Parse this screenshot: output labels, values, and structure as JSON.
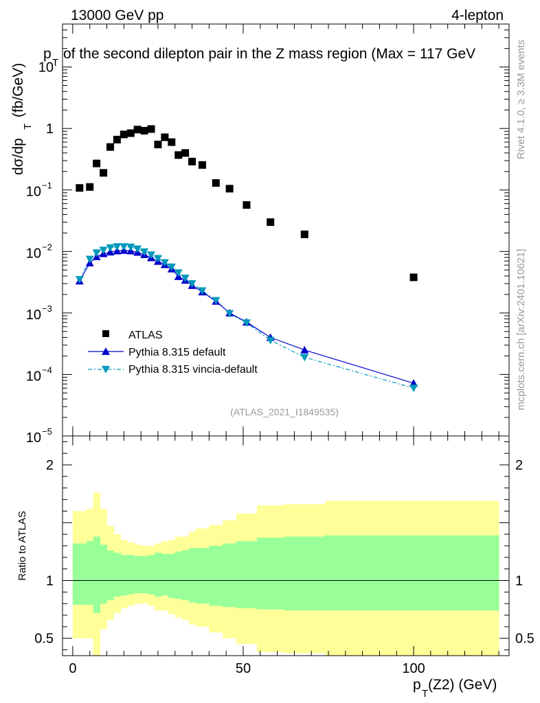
{
  "header": {
    "left": "13000 GeV pp",
    "right": "4-lepton"
  },
  "title": {
    "main": "of the second dilepton pair in the Z mass region (Max = 117 GeV",
    "prefix": "p",
    "prefix_sub": "T"
  },
  "side_labels": {
    "rivet": "Rivet 4.1.0, ≥ 3.3M events",
    "mcplots": "mcplots.cern.ch [arXiv:2401.10621]"
  },
  "analysis_tag": "(ATLAS_2021_I1849535)",
  "colors": {
    "atlas": "#000000",
    "pythia_default": "#0000cc",
    "pythia_vincia": "#0099bb",
    "band_inner": "#99ff99",
    "band_outer": "#ffff99"
  },
  "chart_data": [
    {
      "type": "scatter",
      "name": "main",
      "yscale": "log",
      "ylim": [
        1e-05,
        50
      ],
      "xlim": [
        -3,
        128
      ],
      "ylabel": "dσ/dp",
      "ylabel_sub": "T",
      "ylabel_unit": "(fb/GeV)",
      "y_tick_labels": [
        {
          "value": 10,
          "label": "10"
        },
        {
          "value": 1,
          "label": "1"
        },
        {
          "value": 0.1,
          "label": "10",
          "exp": "−1"
        },
        {
          "value": 0.01,
          "label": "10",
          "exp": "−2"
        },
        {
          "value": 0.001,
          "label": "10",
          "exp": "−3"
        },
        {
          "value": 0.0001,
          "label": "10",
          "exp": "−4"
        },
        {
          "value": 1e-05,
          "label": "10",
          "exp": "−5"
        }
      ],
      "legend": [
        {
          "name": "ATLAS",
          "style": "square"
        },
        {
          "name": "Pythia 8.315 default",
          "style": "tri-up"
        },
        {
          "name": "Pythia 8.315 vincia-default",
          "style": "tri-down"
        }
      ],
      "series": [
        {
          "name": "ATLAS",
          "x": [
            2,
            5,
            7,
            9,
            11,
            13,
            15,
            17,
            19,
            21,
            23,
            25,
            27,
            29,
            31,
            33,
            35,
            38,
            42,
            46,
            51,
            58,
            68,
            100
          ],
          "y": [
            0.108,
            0.112,
            0.27,
            0.19,
            0.5,
            0.66,
            0.8,
            0.84,
            0.96,
            0.92,
            0.98,
            0.55,
            0.72,
            0.6,
            0.37,
            0.4,
            0.29,
            0.255,
            0.13,
            0.105,
            0.057,
            0.03,
            0.019,
            0.0038
          ]
        },
        {
          "name": "Pythia 8.315 default",
          "x": [
            2,
            5,
            7,
            9,
            11,
            13,
            15,
            17,
            19,
            21,
            23,
            25,
            27,
            29,
            31,
            33,
            35,
            38,
            42,
            46,
            51,
            58,
            68,
            100
          ],
          "y": [
            0.0033,
            0.0065,
            0.0082,
            0.0092,
            0.0098,
            0.0102,
            0.0104,
            0.0102,
            0.0097,
            0.0089,
            0.0079,
            0.0069,
            0.0061,
            0.0052,
            0.0039,
            0.0034,
            0.0028,
            0.0022,
            0.00155,
            0.001,
            0.00071,
            0.0004,
            0.00025,
            7.2e-05
          ]
        },
        {
          "name": "Pythia 8.315 vincia-default",
          "x": [
            2,
            5,
            7,
            9,
            11,
            13,
            15,
            17,
            19,
            21,
            23,
            25,
            27,
            29,
            31,
            33,
            35,
            38,
            42,
            46,
            51,
            58,
            68,
            100
          ],
          "y": [
            0.0035,
            0.0075,
            0.0095,
            0.0105,
            0.0115,
            0.012,
            0.012,
            0.0118,
            0.011,
            0.0099,
            0.0088,
            0.0077,
            0.0066,
            0.0056,
            0.0045,
            0.0037,
            0.003,
            0.0023,
            0.0016,
            0.00098,
            0.00069,
            0.00036,
            0.00019,
            6e-05
          ]
        }
      ]
    },
    {
      "type": "area",
      "name": "ratio",
      "ylabel": "Ratio to ATLAS",
      "ylim": [
        0.35,
        2.25
      ],
      "xlim": [
        -3,
        128
      ],
      "xlabel": "p",
      "xlabel_sub": "T",
      "xlabel_rest": "(Z2) (GeV)",
      "x_ticks": [
        0,
        50,
        100
      ],
      "y_ticks": [
        0.5,
        1,
        2
      ],
      "reference": 1,
      "bands": {
        "edges": [
          0,
          4,
          6,
          8,
          10,
          12,
          14,
          16,
          18,
          20,
          22,
          24,
          26,
          28,
          30,
          32,
          34,
          36,
          40,
          44,
          48,
          54,
          62,
          74,
          125
        ],
        "inner_hi": [
          1.32,
          1.34,
          1.38,
          1.31,
          1.26,
          1.24,
          1.22,
          1.22,
          1.21,
          1.21,
          1.22,
          1.24,
          1.23,
          1.23,
          1.25,
          1.26,
          1.28,
          1.28,
          1.3,
          1.32,
          1.34,
          1.37,
          1.38,
          1.39
        ],
        "inner_lo": [
          0.79,
          0.79,
          0.72,
          0.8,
          0.83,
          0.86,
          0.87,
          0.88,
          0.89,
          0.89,
          0.88,
          0.86,
          0.87,
          0.85,
          0.84,
          0.83,
          0.81,
          0.8,
          0.78,
          0.77,
          0.76,
          0.75,
          0.74,
          0.74
        ],
        "outer_hi": [
          1.6,
          1.62,
          1.76,
          1.62,
          1.47,
          1.4,
          1.35,
          1.33,
          1.31,
          1.3,
          1.3,
          1.32,
          1.34,
          1.35,
          1.38,
          1.38,
          1.42,
          1.45,
          1.48,
          1.52,
          1.58,
          1.65,
          1.66,
          1.69
        ],
        "outer_lo": [
          0.5,
          0.5,
          0.35,
          0.58,
          0.66,
          0.72,
          0.76,
          0.78,
          0.8,
          0.8,
          0.78,
          0.74,
          0.74,
          0.71,
          0.68,
          0.66,
          0.62,
          0.6,
          0.55,
          0.5,
          0.45,
          0.38,
          0.37,
          0.35
        ]
      }
    }
  ]
}
